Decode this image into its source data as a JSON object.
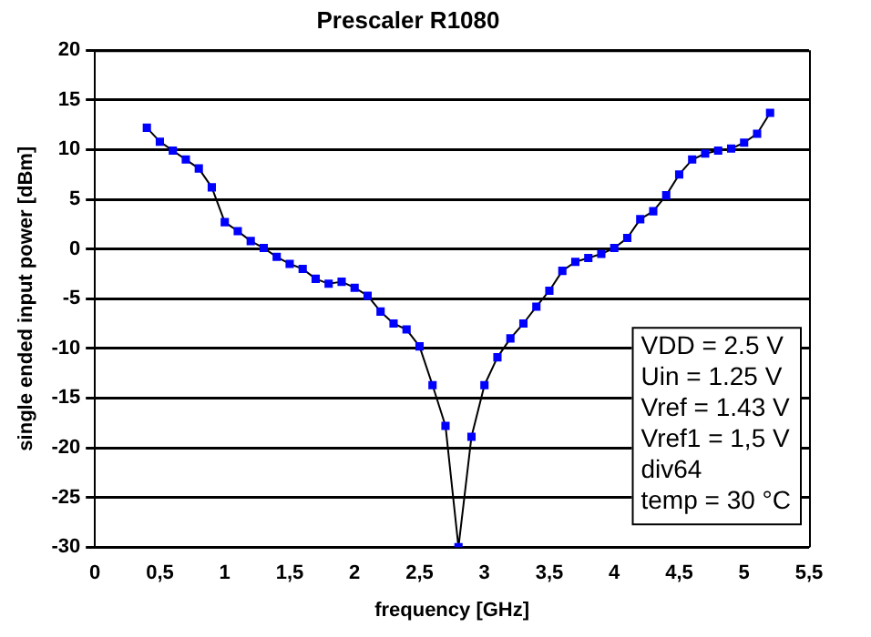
{
  "chart_data": {
    "type": "line",
    "title": "Prescaler R1080",
    "xlabel": "frequency [GHz]",
    "ylabel": "single ended input power [dBm]",
    "x": [
      0.4,
      0.5,
      0.6,
      0.7,
      0.8,
      0.9,
      1.0,
      1.1,
      1.2,
      1.3,
      1.4,
      1.5,
      1.6,
      1.7,
      1.8,
      1.9,
      2.0,
      2.1,
      2.2,
      2.3,
      2.4,
      2.5,
      2.6,
      2.7,
      2.8,
      2.9,
      3.0,
      3.1,
      3.2,
      3.3,
      3.4,
      3.5,
      3.6,
      3.7,
      3.8,
      3.9,
      4.0,
      4.1,
      4.2,
      4.3,
      4.4,
      4.5,
      4.6,
      4.7,
      4.8,
      4.9,
      5.0,
      5.1,
      5.2
    ],
    "series": [
      {
        "color": "#0000ff",
        "values": [
          12.2,
          10.8,
          9.9,
          9.0,
          8.1,
          6.2,
          2.7,
          1.8,
          0.8,
          0.1,
          -0.8,
          -1.5,
          -2.0,
          -3.0,
          -3.5,
          -3.3,
          -3.9,
          -4.7,
          -6.3,
          -7.5,
          -8.1,
          -9.8,
          -13.7,
          -17.8,
          -30,
          -18.9,
          -13.7,
          -10.9,
          -9.0,
          -7.5,
          -5.8,
          -4.2,
          -2.2,
          -1.3,
          -0.9,
          -0.5,
          0.1,
          1.1,
          3.0,
          3.8,
          5.4,
          7.5,
          9.0,
          9.6,
          9.9,
          10.1,
          10.7,
          11.6,
          13.7
        ]
      }
    ],
    "xlim": [
      0,
      5.5
    ],
    "xticks": [
      0,
      {
        "value": 0.5,
        "label": "0,5"
      },
      1,
      {
        "value": 1.5,
        "label": "1,5"
      },
      2,
      {
        "value": 2.5,
        "label": "2,5"
      },
      3,
      {
        "value": 3.5,
        "label": "3,5"
      },
      4,
      {
        "value": 4.5,
        "label": "4,5"
      },
      5,
      {
        "value": 5.5,
        "label": "5,5"
      }
    ],
    "ylim": [
      -30,
      20
    ],
    "yticks": [
      -30,
      -25,
      -20,
      -15,
      -10,
      -5,
      0,
      5,
      10,
      15,
      20
    ],
    "grid": "y",
    "legend": false,
    "marker": "square",
    "line_style": "solid",
    "annotations": [
      "VDD = 2.5 V",
      "Uin = 1.25 V",
      "Vref = 1.43 V",
      "Vref1 = 1,5 V",
      "div64",
      "temp = 30 °C"
    ]
  }
}
